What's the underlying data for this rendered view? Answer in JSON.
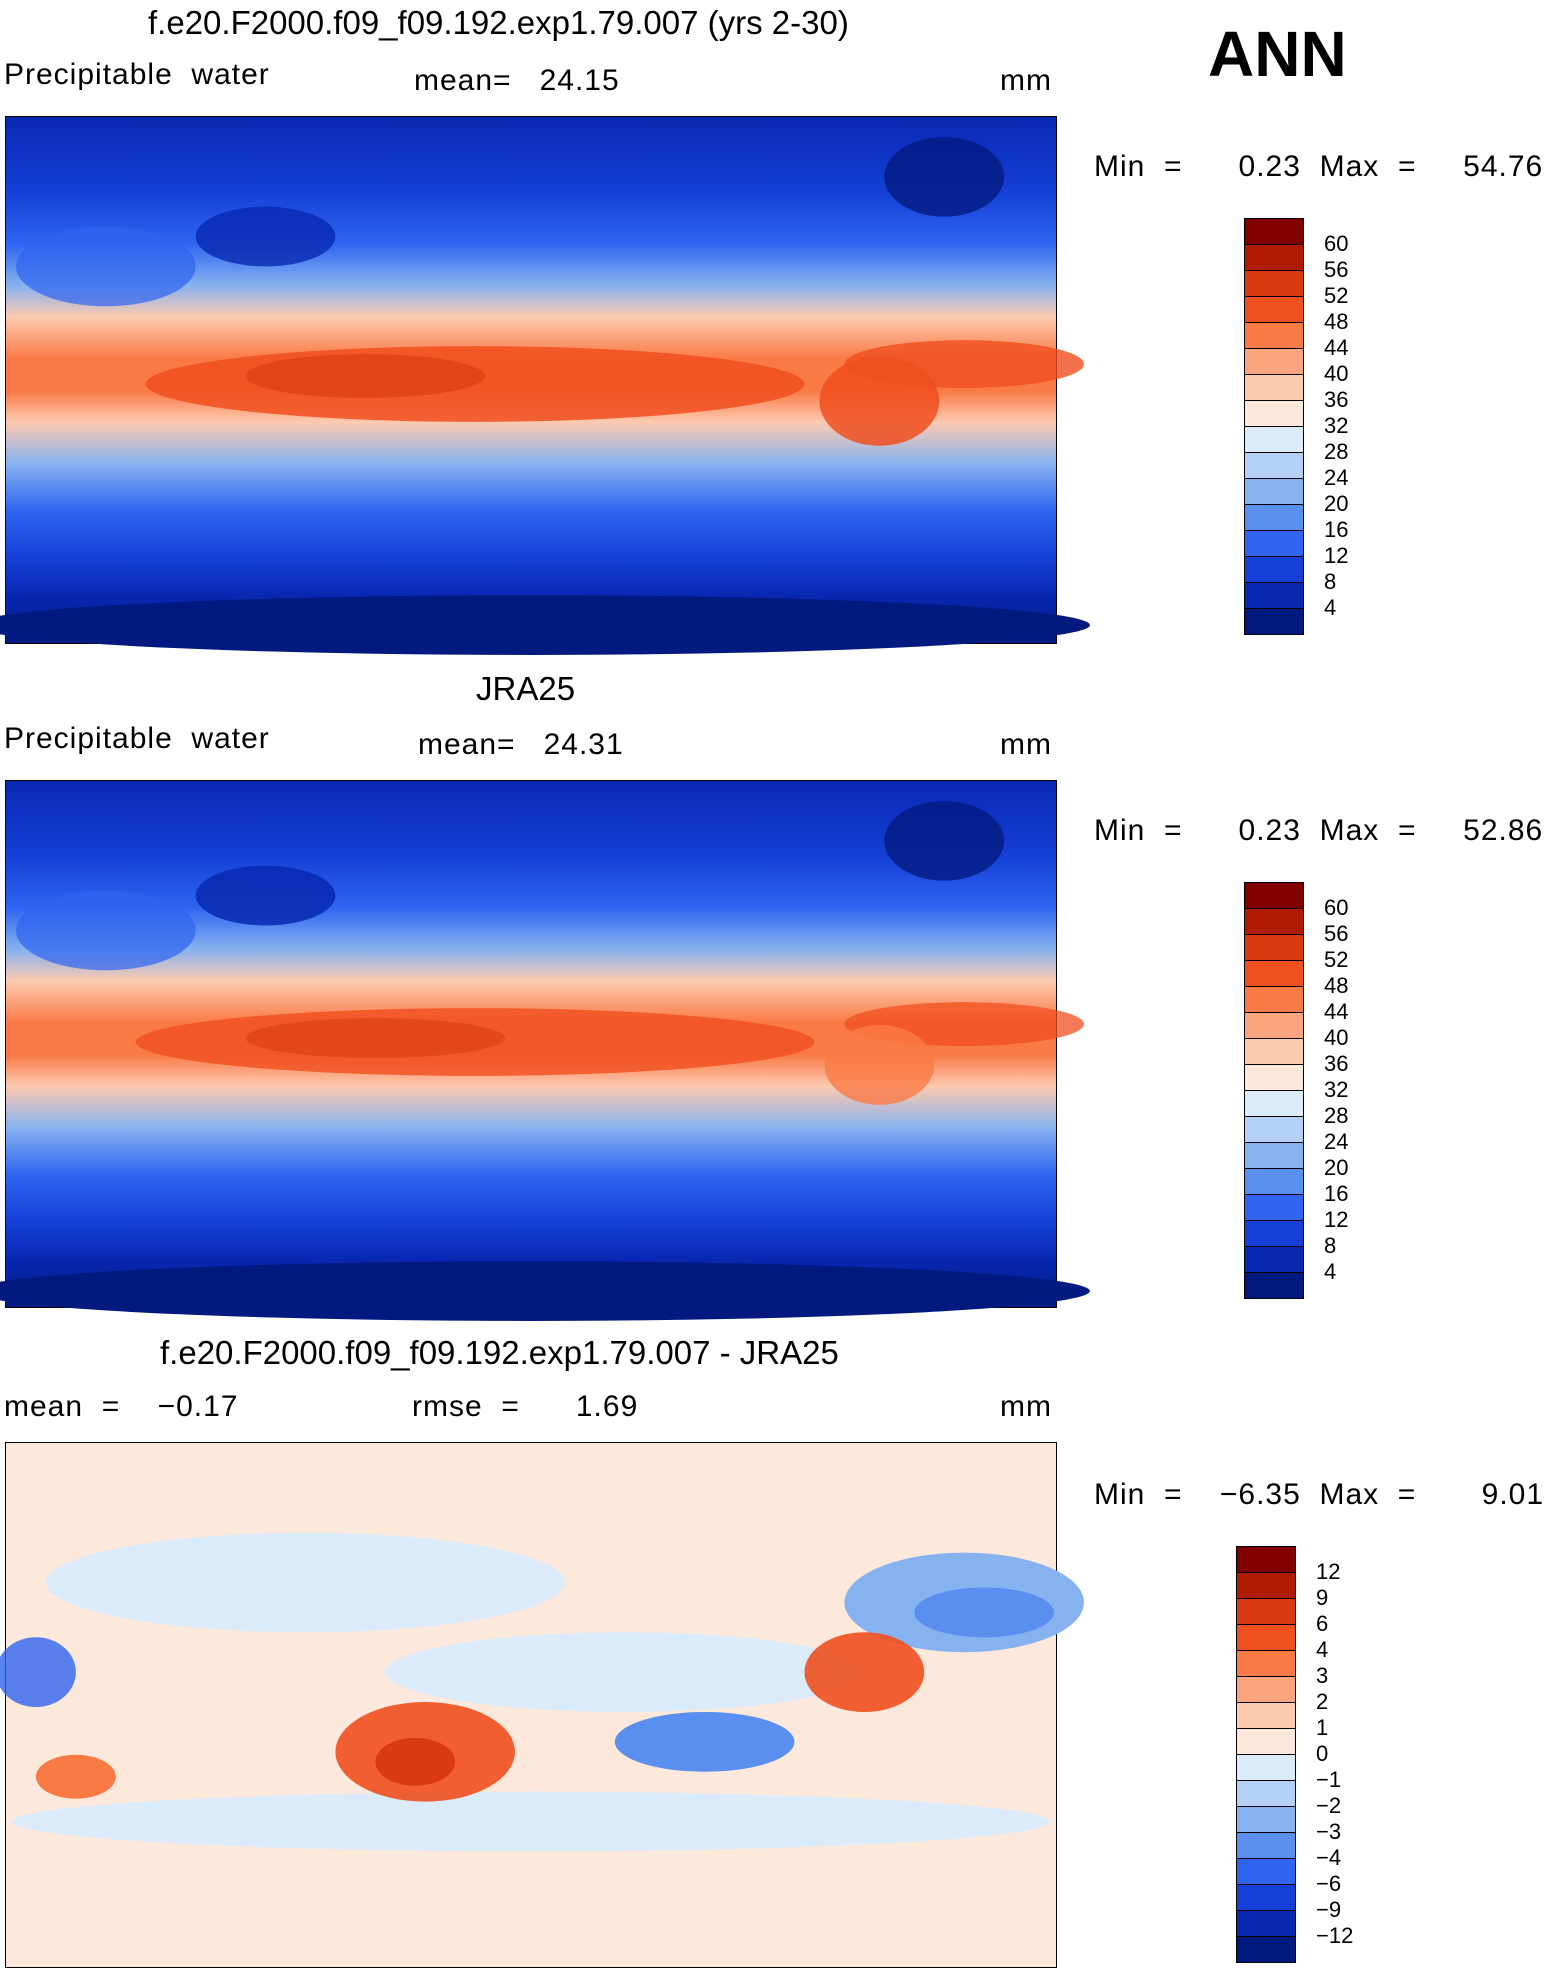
{
  "season": "ANN",
  "panels": [
    {
      "id": "model",
      "title": "f.e20.F2000.f09_f09.192.exp1.79.007 (yrs 2-30)",
      "left_label": "Precipitable  water",
      "center_label": "mean=   24.15",
      "units": "mm",
      "min_max": "Min  =      0.23  Max  =     54.76"
    },
    {
      "id": "obs",
      "title": "JRA25",
      "left_label": "Precipitable  water",
      "center_label": "mean=   24.31",
      "units": "mm",
      "min_max": "Min  =      0.23  Max  =     52.86"
    },
    {
      "id": "diff",
      "title": "f.e20.F2000.f09_f09.192.exp1.79.007 - JRA25",
      "left_label": "mean  =    −0.17",
      "center_label": "rmse  =      1.69",
      "units": "mm",
      "min_max": "Min  =    −6.35  Max  =       9.01"
    }
  ],
  "colorbars": {
    "absolute": {
      "labels": [
        "60",
        "56",
        "52",
        "48",
        "44",
        "40",
        "36",
        "32",
        "28",
        "24",
        "20",
        "16",
        "12",
        "8",
        "4"
      ],
      "colors": [
        "#800000",
        "#b01a00",
        "#d93a10",
        "#f04f1f",
        "#fa7a45",
        "#fca37f",
        "#fdcab0",
        "#fde9dc",
        "#dcebfa",
        "#b4d0f6",
        "#86b2f0",
        "#5a8eef",
        "#2e64f0",
        "#153fd6",
        "#0828b2",
        "#021a80"
      ]
    },
    "difference": {
      "labels": [
        "12",
        "9",
        "6",
        "4",
        "3",
        "2",
        "1",
        "0",
        "−1",
        "−2",
        "−3",
        "−4",
        "−6",
        "−9",
        "−12"
      ],
      "colors": [
        "#800000",
        "#b01a00",
        "#d93a10",
        "#f04f1f",
        "#fa7a45",
        "#fca37f",
        "#fdcab0",
        "#fde9dc",
        "#dcebfa",
        "#b4d0f6",
        "#86b2f0",
        "#5a8eef",
        "#2e64f0",
        "#153fd6",
        "#0828b2",
        "#021a80"
      ]
    }
  }
}
